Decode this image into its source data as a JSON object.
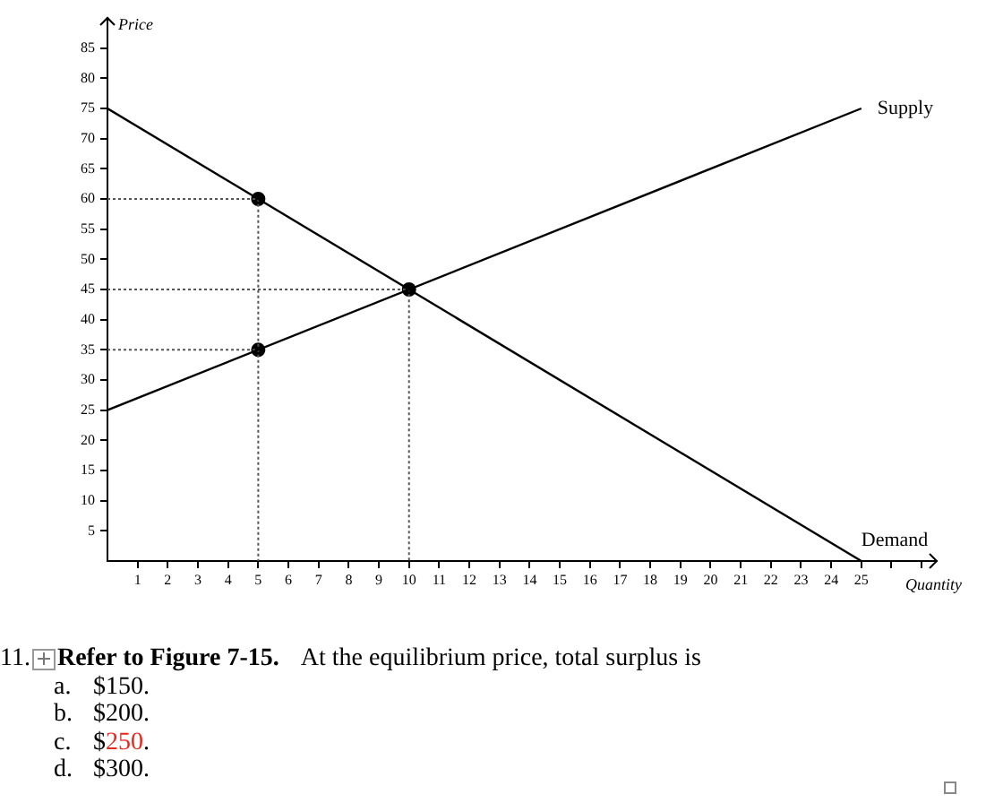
{
  "chart_data": {
    "type": "line",
    "xlabel": "Quantity",
    "ylabel": "Price",
    "xlim": [
      0,
      27.5
    ],
    "ylim": [
      0,
      90
    ],
    "xticks": [
      1,
      2,
      3,
      4,
      5,
      6,
      7,
      8,
      9,
      10,
      11,
      12,
      13,
      14,
      15,
      16,
      17,
      18,
      19,
      20,
      21,
      22,
      23,
      24,
      25,
      {
        "value": 26,
        "label": null
      },
      {
        "value": 27,
        "label": null
      }
    ],
    "yticks": [
      5,
      10,
      15,
      20,
      25,
      30,
      35,
      40,
      45,
      50,
      55,
      60,
      65,
      70,
      75,
      80,
      85
    ],
    "grid": false,
    "legend": false,
    "series": [
      {
        "name": "Supply",
        "x": [
          0,
          25
        ],
        "values": [
          25,
          75
        ],
        "color": "#000000",
        "marker": "none",
        "line_style": "solid"
      },
      {
        "name": "Demand",
        "x": [
          0,
          25
        ],
        "values": [
          75,
          0
        ],
        "color": "#000000",
        "marker": "none",
        "line_style": "solid"
      },
      {
        "type": "line",
        "x": [
          0,
          5,
          5
        ],
        "values": [
          60,
          60,
          0
        ],
        "color": "#555555",
        "marker": "none",
        "line_style": "dotted"
      },
      {
        "type": "line",
        "x": [
          0,
          5
        ],
        "values": [
          35,
          35
        ],
        "color": "#555555",
        "marker": "none",
        "line_style": "dotted"
      },
      {
        "type": "line",
        "x": [
          0,
          10,
          10
        ],
        "values": [
          45,
          45,
          0
        ],
        "color": "#555555",
        "marker": "none",
        "line_style": "dotted"
      },
      {
        "type": "scatter",
        "x": [
          5,
          5,
          10
        ],
        "values": [
          60,
          35,
          45
        ],
        "color": "#000000",
        "marker": "circle"
      }
    ],
    "annotations": [
      "11.",
      "Refer to Figure 7-15.",
      "At the equilibrium price, total surplus is",
      "a.",
      "$150.",
      "b.",
      "$200.",
      "c.",
      "$",
      "250",
      ".",
      "d.",
      "$300."
    ]
  }
}
